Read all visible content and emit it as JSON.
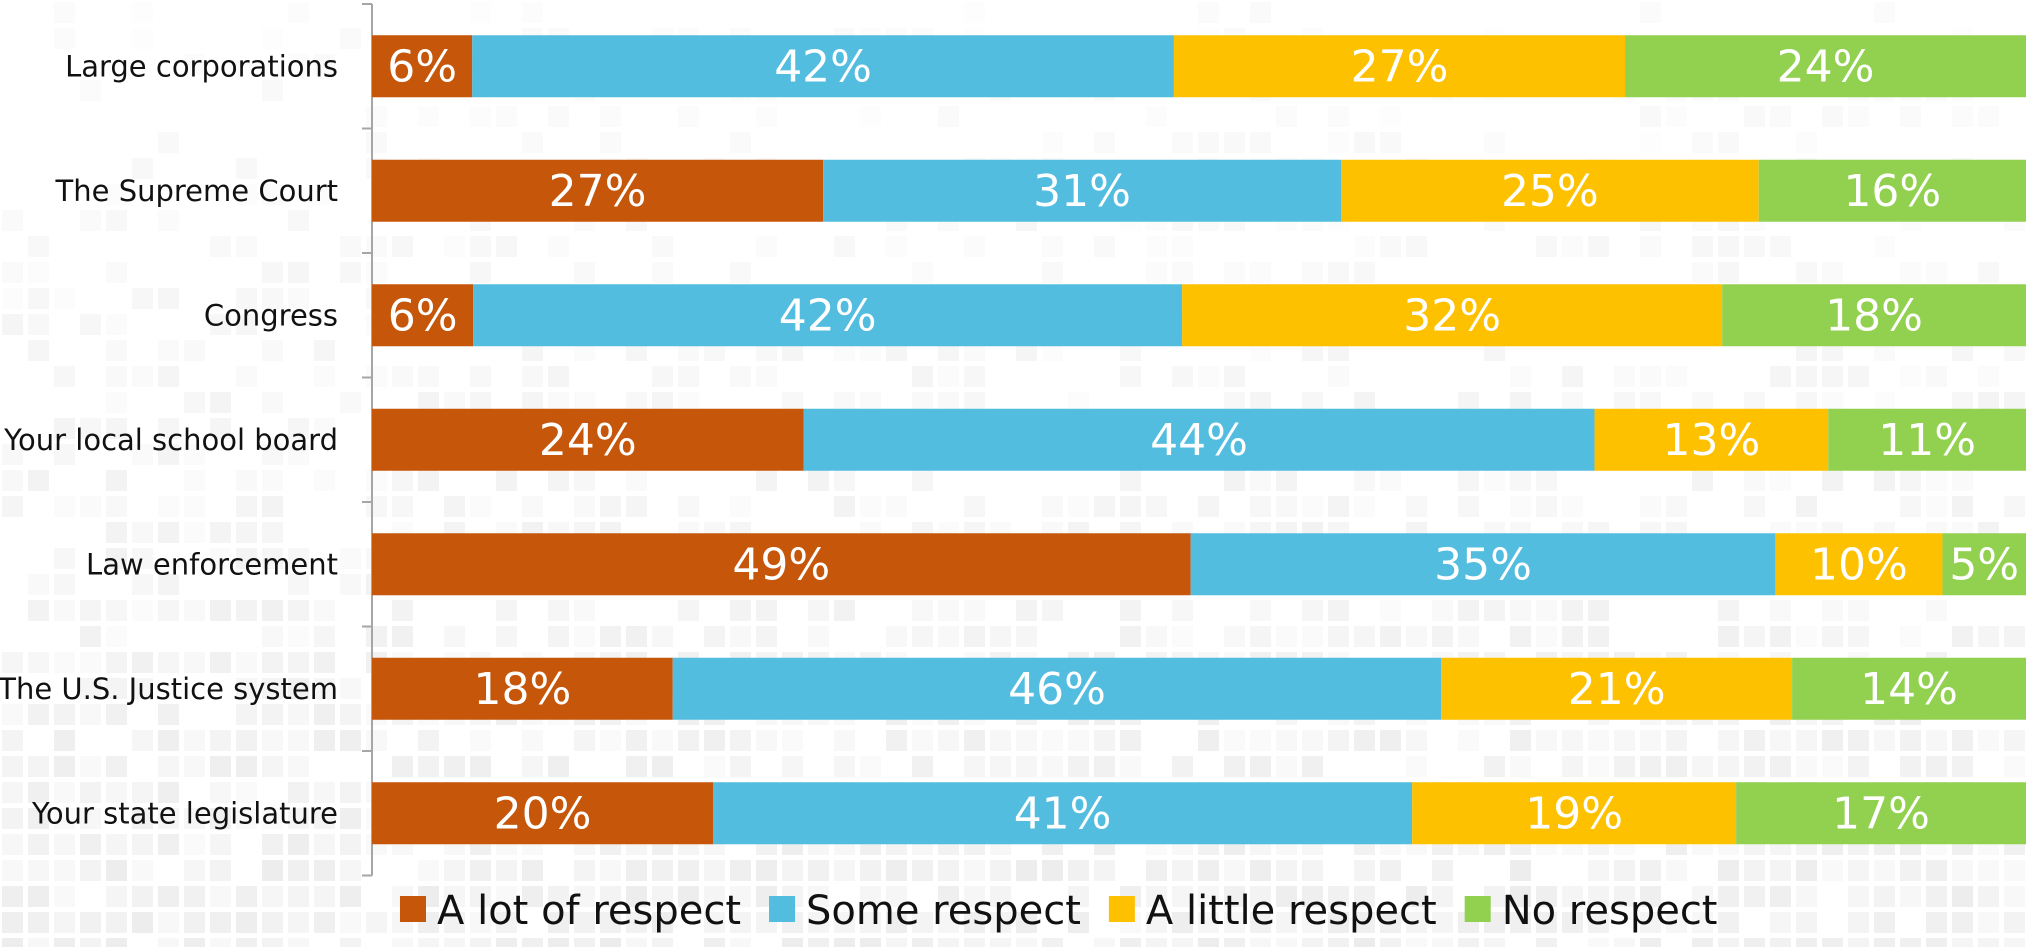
{
  "chart_data": {
    "type": "bar",
    "orientation": "horizontal",
    "stacked": true,
    "categories": [
      "Large corporations",
      "The Supreme Court",
      "Congress",
      "Your local school board",
      "Law enforcement",
      "The U.S. Justice system",
      "Your state legislature"
    ],
    "series": [
      {
        "name": "A lot of respect",
        "color": "#c5560a",
        "values": [
          6,
          27,
          6,
          24,
          49,
          18,
          20
        ]
      },
      {
        "name": "Some respect",
        "color": "#53bde0",
        "values": [
          42,
          31,
          42,
          44,
          35,
          46,
          41
        ]
      },
      {
        "name": "A little respect",
        "color": "#fdc100",
        "values": [
          27,
          25,
          32,
          13,
          10,
          21,
          19
        ]
      },
      {
        "name": "No respect",
        "color": "#92d050",
        "values": [
          24,
          16,
          18,
          11,
          5,
          14,
          17
        ]
      }
    ],
    "label_suffix": "%",
    "legend_position": "bottom",
    "grid": false,
    "background_pattern": "light-gray-tile-mosaic"
  }
}
